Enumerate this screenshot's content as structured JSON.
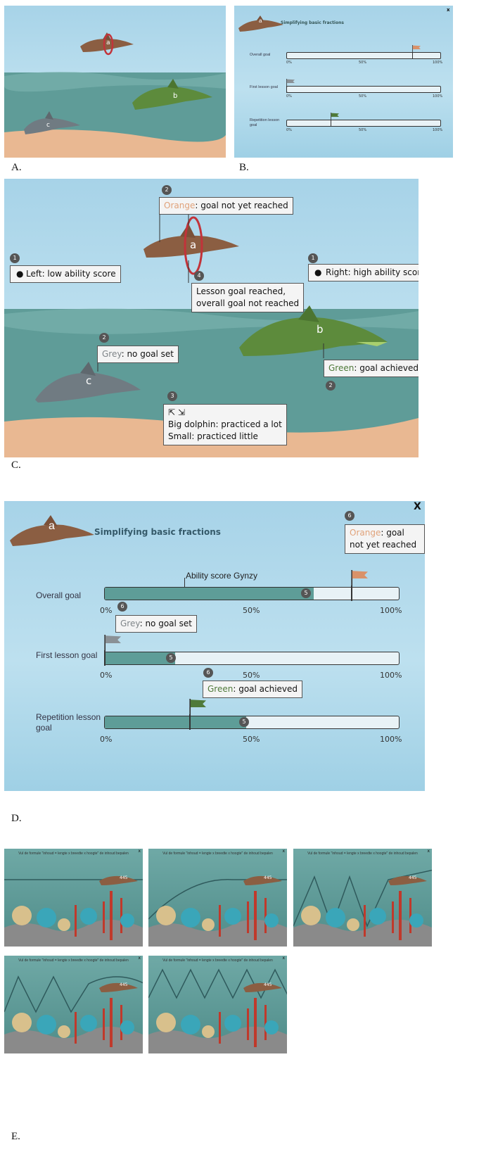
{
  "panel_labels": {
    "a": "A.",
    "b": "B.",
    "c": "C.",
    "d": "D.",
    "e": "E."
  },
  "dolphin_letters": {
    "a": "a",
    "b": "b",
    "c": "c"
  },
  "panel_b": {
    "title": "Simplifying basic fractions",
    "close": "x",
    "goals": [
      {
        "label": "Overall goal",
        "flag": "orange",
        "flag_pct": 0.82
      },
      {
        "label": "First lesson goal",
        "flag": "grey",
        "flag_pct": 0.0
      },
      {
        "label": "Repetition lesson goal",
        "flag": "green",
        "flag_pct": 0.29
      }
    ],
    "ticks": [
      "0%",
      "50%",
      "100%"
    ]
  },
  "panel_c": {
    "left_ability": "Left: low ability score",
    "right_ability": "Right: high ability score",
    "orange_word": "Orange",
    "orange_rest": ": goal not yet reached",
    "grey_word": "Grey",
    "grey_rest": ": no goal set",
    "green_word": "Green",
    "green_rest": ": goal achieved",
    "lesson_goal_line1": "Lesson goal reached,",
    "lesson_goal_line2": "overall goal not reached",
    "size_line1": "Big dolphin: practiced a lot",
    "size_line2": "Small: practiced little",
    "markers": {
      "one": "1",
      "two": "2",
      "three": "3",
      "four": "4"
    }
  },
  "panel_d": {
    "title": "Simplifying basic fractions",
    "close": "X",
    "ability_label": "Ability score Gynzy",
    "orange_word": "Orange",
    "orange_rest": ": goal not yet reached",
    "grey_word": "Grey",
    "grey_rest": ": no goal set",
    "green_word": "Green",
    "green_rest": ": goal achieved",
    "goals": [
      {
        "label": "Overall goal",
        "fill_pct": 0.71,
        "flag": "orange",
        "flag_pct": 0.84
      },
      {
        "label": "First lesson goal",
        "fill_pct": 0.24,
        "flag": "grey",
        "flag_pct": 0.0
      },
      {
        "label": "Repetition lesson goal",
        "fill_pct": 0.48,
        "flag": "green",
        "flag_pct": 0.29
      }
    ],
    "ticks": [
      "0%",
      "50%",
      "100%"
    ],
    "markers": {
      "five": "5",
      "six": "6"
    }
  },
  "panel_e": {
    "title": "Vul de formule \"inhoud = lengte x breedte x hoogte\" de inhoud bepalen",
    "score": "445",
    "close": "x"
  },
  "colors": {
    "orange": "#d9926a",
    "grey": "#8a9196",
    "green": "#4f7a3a",
    "bar_fill": "#5e9d98",
    "sea": "#5f9c98",
    "sand": "#e9b892"
  }
}
